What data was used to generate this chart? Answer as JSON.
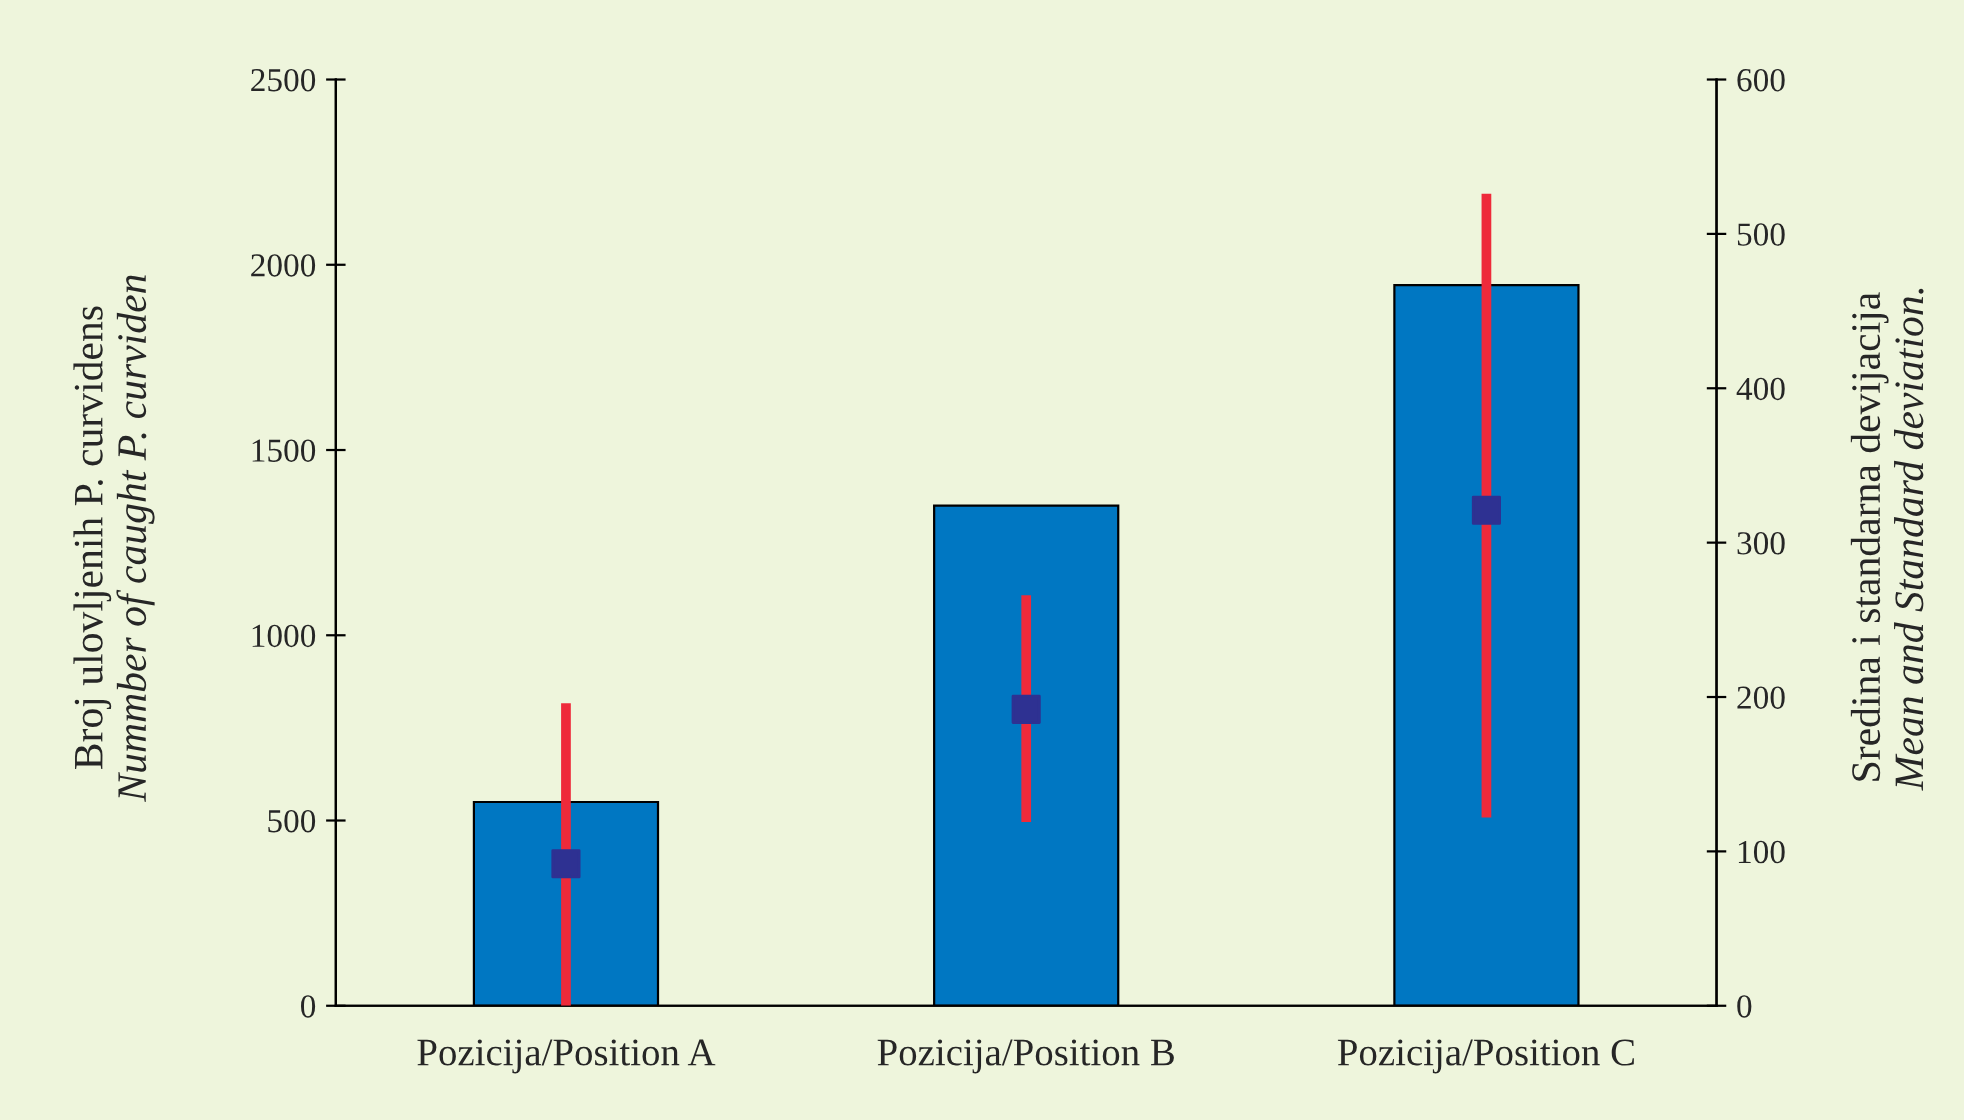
{
  "chart_data": {
    "type": "bar",
    "categories": [
      "Pozicija/Position A",
      "Pozicija/Position B",
      "Pozicija/Position C"
    ],
    "ylabel": "Broj ulovljenih P. curvidens\nNummber of caught P. curviden",
    "y2label": "Sredina i standarna devijacija\nMean and Standard deviation.",
    "series": [
      {
        "color": "#0077c2",
        "values": [
          550,
          1350,
          1945
        ]
      },
      {
        "type": "scatter",
        "axis": "y2",
        "color": "#2e3192",
        "values": [
          92,
          192,
          321
        ],
        "errors": [
          [
            0,
            196
          ],
          [
            119,
            266
          ],
          [
            122,
            526
          ]
        ]
      }
    ],
    "marker": "square",
    "ylim": [
      0,
      2500
    ],
    "yticks": [
      0,
      500,
      1000,
      1500,
      2000,
      2500
    ],
    "y2lim": [
      0,
      600
    ],
    "y2ticks": [
      0,
      100,
      200,
      300,
      400,
      500,
      600
    ],
    "grid": false,
    "legend": false
  }
}
